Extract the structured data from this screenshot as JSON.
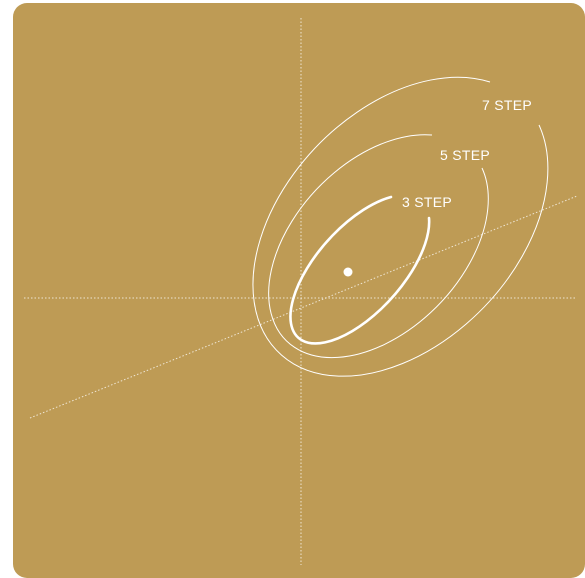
{
  "diagram": {
    "background_color": "#BE9B55",
    "line_color": "#ffffff",
    "labels": {
      "step3": "3 STEP",
      "step5": "5 STEP",
      "step7": "7 STEP"
    }
  }
}
